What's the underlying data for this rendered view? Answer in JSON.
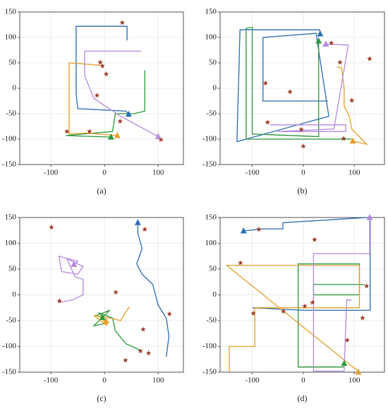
{
  "chart_data": [
    {
      "type": "line",
      "caption": "(a)",
      "xlim": [
        -158,
        147
      ],
      "ylim": [
        -150,
        150
      ],
      "xticks": [
        -100,
        0,
        100
      ],
      "yticks": [
        -150,
        -100,
        -50,
        0,
        50,
        100,
        150
      ],
      "grid": true,
      "series": [
        {
          "color": "#2f6fb5",
          "x": [
            42,
            42,
            -53,
            -53,
            -50,
            40,
            45
          ],
          "y": [
            94,
            122,
            122,
            -10,
            -40,
            -45,
            -51
          ],
          "marker": {
            "x": 45,
            "y": -51
          }
        },
        {
          "color": "#2e9b3e",
          "x": [
            75,
            75,
            55,
            20,
            15,
            -72,
            12
          ],
          "y": [
            35,
            -45,
            -50,
            -50,
            -85,
            -93,
            -96
          ],
          "marker": {
            "x": 12,
            "y": -96
          }
        },
        {
          "color": "#e5a12b",
          "x": [
            -3,
            -5,
            -66,
            -66,
            -35,
            24
          ],
          "y": [
            40,
            45,
            50,
            -90,
            -88,
            -93
          ],
          "marker": {
            "x": 24,
            "y": -93
          }
        },
        {
          "color": "#b58be0",
          "x": [
            68,
            -37,
            -37,
            -20,
            30,
            100
          ],
          "y": [
            73,
            73,
            25,
            -20,
            -55,
            -95
          ],
          "marker": {
            "x": 100,
            "y": -95
          }
        }
      ],
      "stars": {
        "color": "#a0402c",
        "x": [
          33,
          -8,
          -4,
          3,
          -14,
          29,
          -70,
          -28,
          105
        ],
        "y": [
          129,
          51,
          44,
          28,
          -14,
          -65,
          -85,
          -85,
          -101
        ]
      }
    },
    {
      "type": "line",
      "caption": "(b)",
      "xlim": [
        -163,
        159
      ],
      "ylim": [
        -150,
        150
      ],
      "xticks": [
        -100,
        0,
        100
      ],
      "yticks": [
        -150,
        -100,
        -50,
        0,
        50,
        100,
        150
      ],
      "grid": true,
      "series": [
        {
          "color": "#2f6fb5",
          "x": [
            48,
            -79,
            -79,
            25,
            50,
            -130,
            -124,
            32,
            33
          ],
          "y": [
            -25,
            -25,
            100,
            108,
            -55,
            -105,
            115,
            115,
            107
          ],
          "marker": {
            "x": 33,
            "y": 107
          }
        },
        {
          "color": "#2e9b3e",
          "x": [
            95,
            -112,
            -112,
            -100,
            -100,
            30,
            30
          ],
          "y": [
            -100,
            -100,
            118,
            120,
            -90,
            -95,
            93
          ],
          "marker": {
            "x": 30,
            "y": 93
          }
        },
        {
          "color": "#e5a12b",
          "x": [
            66,
            75,
            80,
            80,
            90,
            95,
            124,
            97
          ],
          "y": [
            42,
            40,
            0,
            -35,
            -55,
            -80,
            -110,
            -104
          ],
          "marker": {
            "x": 97,
            "y": -104
          }
        },
        {
          "color": "#b58be0",
          "x": [
            -65,
            83,
            83,
            -50,
            60,
            88,
            44
          ],
          "y": [
            -72,
            -72,
            -85,
            -85,
            -80,
            85,
            87
          ],
          "marker": {
            "x": 44,
            "y": 87
          }
        }
      ],
      "stars": {
        "color": "#a0402c",
        "x": [
          130,
          72,
          55,
          -74,
          -26,
          95,
          -70,
          -4,
          0,
          79
        ],
        "y": [
          58,
          51,
          89,
          10,
          -7,
          -24,
          -67,
          -81,
          -114,
          -99
        ]
      }
    },
    {
      "type": "line",
      "caption": "(c)",
      "xlim": [
        -158,
        147
      ],
      "ylim": [
        -150,
        150
      ],
      "xticks": [
        -100,
        0,
        100
      ],
      "yticks": [
        -150,
        -100,
        -50,
        0,
        50,
        100,
        150
      ],
      "grid": true,
      "series": [
        {
          "color": "#2f6fb5",
          "x": [
            115,
            120,
            115,
            100,
            90,
            70,
            60,
            70,
            62,
            62
          ],
          "y": [
            -120,
            -80,
            -45,
            -20,
            20,
            40,
            60,
            90,
            120,
            140
          ],
          "marker": {
            "x": 62,
            "y": 140
          }
        },
        {
          "color": "#2e9b3e",
          "x": [
            68,
            40,
            20,
            15,
            -10,
            5,
            -20,
            10,
            -15,
            -4
          ],
          "y": [
            -108,
            -95,
            -70,
            -45,
            -35,
            -55,
            -60,
            -30,
            -40,
            -44
          ],
          "marker": {
            "x": -4,
            "y": -44
          }
        },
        {
          "color": "#e5a12b",
          "x": [
            46,
            30,
            10,
            -20,
            5,
            -5,
            3
          ],
          "y": [
            -23,
            -50,
            -45,
            -40,
            -60,
            -45,
            -51
          ],
          "marker": {
            "x": 3,
            "y": -51
          }
        },
        {
          "color": "#b58be0",
          "x": [
            -85,
            -60,
            -40,
            -40,
            -55,
            -70,
            -40,
            -50,
            -80,
            -85,
            -50,
            -57
          ],
          "y": [
            -15,
            -10,
            0,
            30,
            35,
            70,
            55,
            40,
            45,
            75,
            65,
            59
          ],
          "marker": {
            "x": -57,
            "y": 59
          }
        }
      ],
      "stars": {
        "color": "#a0402c",
        "x": [
          -99,
          75,
          -84,
          21,
          121,
          72,
          39,
          82,
          67
        ],
        "y": [
          131,
          127,
          -12,
          5,
          -37,
          -67,
          -127,
          -113,
          -109
        ]
      }
    },
    {
      "type": "line",
      "caption": "(d)",
      "xlim": [
        -163,
        159
      ],
      "ylim": [
        -150,
        150
      ],
      "xticks": [
        -100,
        0,
        100
      ],
      "yticks": [
        -150,
        -100,
        -50,
        0,
        50,
        100,
        150
      ],
      "grid": true,
      "series": [
        {
          "color": "#2f6fb5",
          "x": [
            -100,
            0,
            131,
            131,
            125,
            -40,
            -40,
            -80,
            -117
          ],
          "y": [
            -25,
            -30,
            -30,
            150,
            150,
            140,
            128,
            128,
            124
          ],
          "marker": {
            "x": -117,
            "y": 124
          }
        },
        {
          "color": "#2e9b3e",
          "x": [
            120,
            20,
            20,
            110,
            110,
            -10,
            -10,
            80,
            80
          ],
          "y": [
            20,
            20,
            0,
            0,
            60,
            60,
            -140,
            -140,
            -133
          ],
          "marker": {
            "x": 80,
            "y": -133
          }
        },
        {
          "color": "#e5a12b",
          "x": [
            -145,
            -145,
            -95,
            -95,
            110,
            110,
            -150,
            110,
            108
          ],
          "y": [
            -150,
            -100,
            -100,
            -25,
            -25,
            57,
            57,
            -150,
            -150
          ],
          "marker": {
            "x": 108,
            "y": -150
          }
        },
        {
          "color": "#b58be0",
          "x": [
            95,
            85,
            80,
            20,
            20,
            130,
            130
          ],
          "y": [
            -10,
            -10,
            -148,
            -148,
            80,
            80,
            150
          ],
          "marker": {
            "x": 130,
            "y": 150
          }
        }
      ],
      "stars": {
        "color": "#a0402c",
        "x": [
          -87,
          22,
          -123,
          -98,
          -39,
          3,
          18,
          124,
          116,
          86
        ],
        "y": [
          127,
          107,
          62,
          -36,
          -32,
          -22,
          -15,
          17,
          -45,
          -88
        ]
      }
    }
  ]
}
